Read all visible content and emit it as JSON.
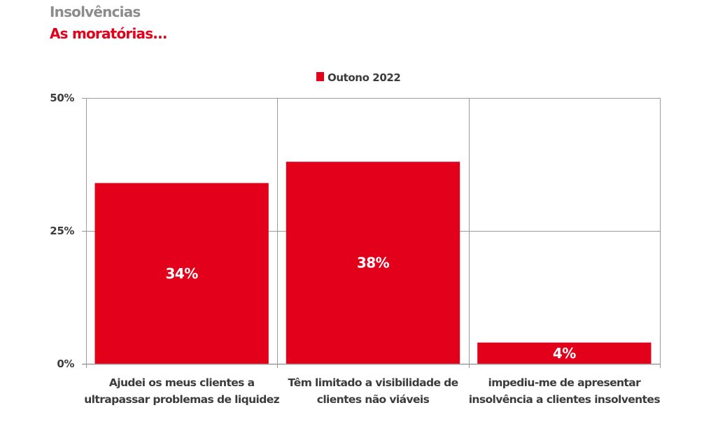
{
  "header": {
    "title": "Insolvências",
    "subtitle": "As moratórias..."
  },
  "colors": {
    "bar": "#e2001a",
    "grid": "#9a9a9a",
    "title": "#8c8c8c",
    "subtitle": "#e2001a",
    "text": "#3c3c3c"
  },
  "chart_data": {
    "type": "bar",
    "title": "Insolvências",
    "subtitle": "As moratórias...",
    "xlabel": "",
    "ylabel": "",
    "ylim": [
      0,
      50
    ],
    "yticks": [
      0,
      25,
      50
    ],
    "ytick_labels": [
      "0%",
      "25%",
      "50%"
    ],
    "grid": true,
    "legend_position": "top-center",
    "categories": [
      [
        "Ajudei os meus clientes a",
        "ultrapassar problemas de liquidez"
      ],
      [
        "Têm limitado a visibilidade de",
        "clientes não viáveis"
      ],
      [
        "impediu-me de apresentar",
        "insolvência a clientes insolventes"
      ]
    ],
    "series": [
      {
        "name": "Outono 2022",
        "values": [
          34,
          38,
          4
        ],
        "labels": [
          "34%",
          "38%",
          "4%"
        ]
      }
    ]
  }
}
